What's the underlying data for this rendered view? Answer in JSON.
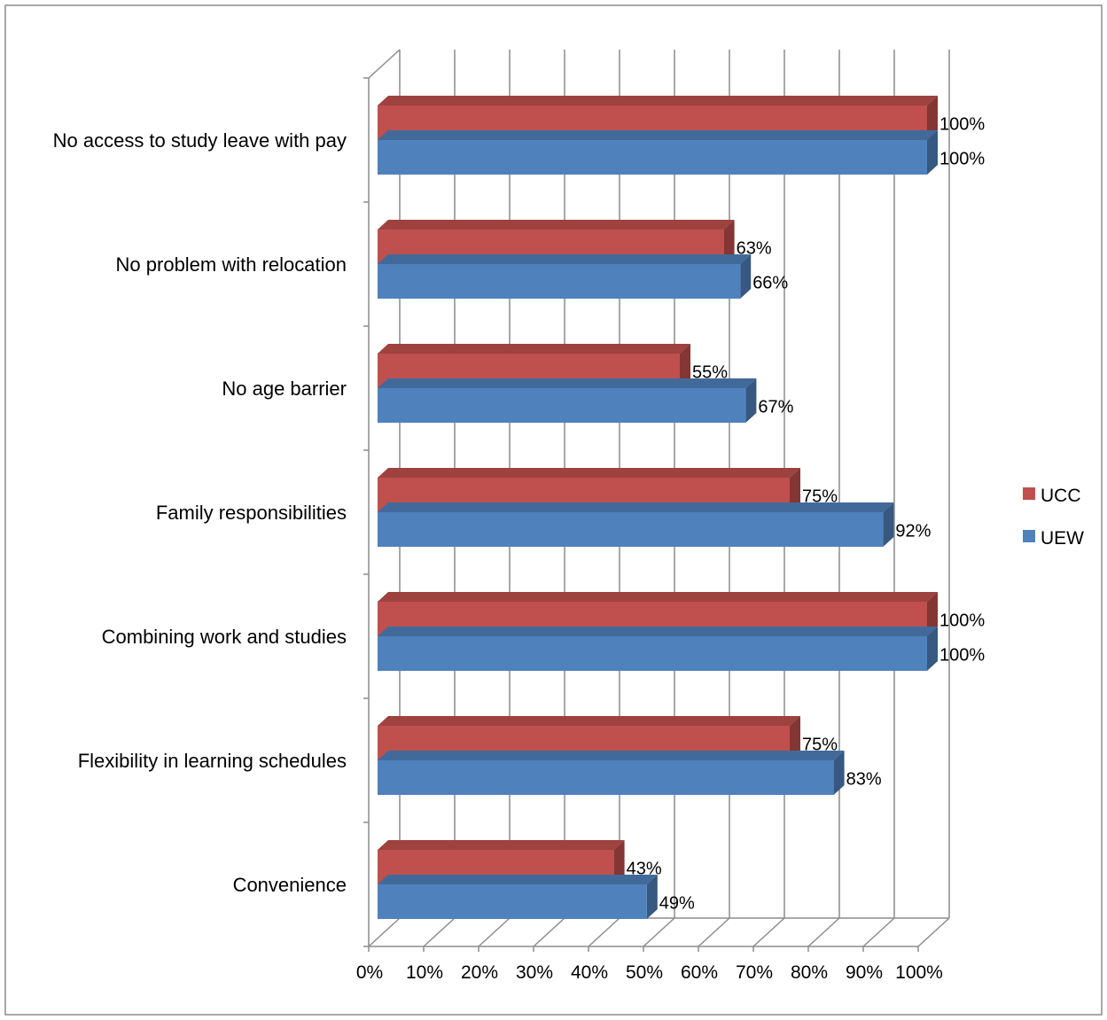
{
  "chart_data": {
    "type": "bar",
    "orientation": "horizontal",
    "style": "3d-clustered",
    "title": "",
    "xlabel": "",
    "ylabel": "",
    "categories": [
      "No access to study leave with pay",
      "No problem with relocation",
      "No age barrier",
      "Family responsibilities",
      "Combining work and studies",
      "Flexibility in learning schedules",
      "Convenience"
    ],
    "series": [
      {
        "name": "UCC",
        "color": "#c0504d",
        "values": [
          100,
          63,
          55,
          75,
          100,
          75,
          43
        ],
        "labels": [
          "100%",
          "63%",
          "55%",
          "75%",
          "100%",
          "75%",
          "43%"
        ]
      },
      {
        "name": "UEW",
        "color": "#4f81bd",
        "values": [
          100,
          66,
          67,
          92,
          100,
          83,
          49
        ],
        "labels": [
          "100%",
          "66%",
          "67%",
          "92%",
          "100%",
          "83%",
          "49%"
        ]
      }
    ],
    "xlim": [
      0,
      100
    ],
    "x_ticks": [
      "0%",
      "10%",
      "20%",
      "30%",
      "40%",
      "50%",
      "60%",
      "70%",
      "80%",
      "90%",
      "100%"
    ],
    "grid": true,
    "legend": {
      "position": "right",
      "entries": [
        {
          "name": "UCC",
          "color": "#c0504d"
        },
        {
          "name": "UEW",
          "color": "#4f81bd"
        }
      ]
    }
  }
}
